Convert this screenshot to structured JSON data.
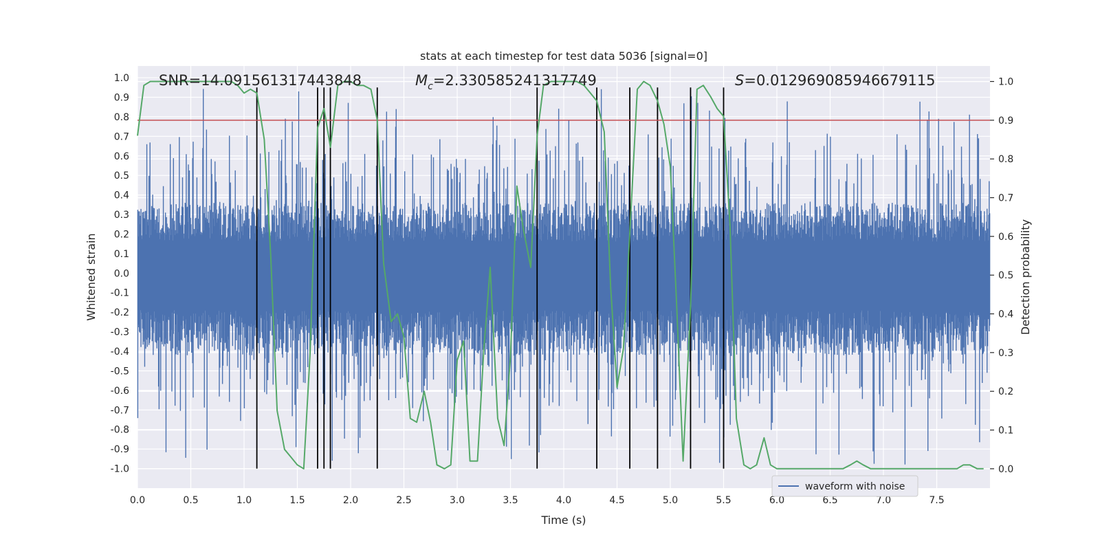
{
  "chart_data": {
    "type": "line",
    "title": "stats at each timestep for test data 5036 [signal=0]",
    "xlabel": "Time (s)",
    "ylabel_left": "Whitened strain",
    "ylabel_right": "Detection probability",
    "xlim": [
      0.0,
      8.0
    ],
    "ylim_left": [
      -1.1,
      1.06
    ],
    "ylim_right": [
      -0.05,
      1.04
    ],
    "x_ticks": [
      "0.0",
      "0.5",
      "1.0",
      "1.5",
      "2.0",
      "2.5",
      "3.0",
      "3.5",
      "4.0",
      "4.5",
      "5.0",
      "5.5",
      "6.0",
      "6.5",
      "7.0",
      "7.5"
    ],
    "y_ticks_left": [
      "1.0",
      "0.9",
      "0.8",
      "0.7",
      "0.6",
      "0.5",
      "0.4",
      "0.3",
      "0.2",
      "0.1",
      "0.0",
      "-0.1",
      "-0.2",
      "-0.3",
      "-0.4",
      "-0.5",
      "-0.6",
      "-0.7",
      "-0.8",
      "-0.9",
      "-1.0"
    ],
    "y_ticks_right": [
      "1.0",
      "0.9",
      "0.8",
      "0.7",
      "0.6",
      "0.5",
      "0.4",
      "0.3",
      "0.2",
      "0.1",
      "0.0"
    ],
    "annotations": {
      "snr": "SNR=14.091561317443848",
      "mc_symbol": "M",
      "mc_sub": "c",
      "mc_value": "=2.330585241317749",
      "s_symbol": "S",
      "s_value": "=0.012969085946679115"
    },
    "legend": {
      "position": "lower-center-right",
      "entries": [
        "waveform with noise"
      ]
    },
    "threshold": {
      "value": 0.9,
      "axis": "right",
      "color": "#c44e52"
    },
    "vertical_lines": [
      1.12,
      1.69,
      1.75,
      1.81,
      2.25,
      3.75,
      4.31,
      4.62,
      4.88,
      5.19,
      5.5
    ],
    "vertical_lines_range_left": [
      -1.0,
      0.95
    ],
    "waveform_noise": {
      "name": "waveform with noise",
      "color": "#4c72b0",
      "sample_count": 1600,
      "typical_envelope": [
        -0.42,
        0.36
      ],
      "peak_max": 0.95,
      "peak_min": -0.98
    },
    "detection_probability": {
      "color": "#55a868",
      "x": [
        0.0,
        0.06,
        0.12,
        0.19,
        0.25,
        0.31,
        0.38,
        0.44,
        0.5,
        0.56,
        0.62,
        0.69,
        0.75,
        0.81,
        0.88,
        0.94,
        1.0,
        1.06,
        1.12,
        1.19,
        1.25,
        1.31,
        1.38,
        1.44,
        1.5,
        1.56,
        1.62,
        1.69,
        1.75,
        1.81,
        1.88,
        1.94,
        2.0,
        2.06,
        2.12,
        2.19,
        2.25,
        2.31,
        2.38,
        2.44,
        2.5,
        2.56,
        2.62,
        2.69,
        2.75,
        2.81,
        2.88,
        2.94,
        3.0,
        3.06,
        3.12,
        3.19,
        3.25,
        3.31,
        3.38,
        3.44,
        3.5,
        3.56,
        3.62,
        3.69,
        3.75,
        3.81,
        3.88,
        3.94,
        4.0,
        4.06,
        4.12,
        4.19,
        4.25,
        4.31,
        4.38,
        4.44,
        4.5,
        4.56,
        4.62,
        4.69,
        4.75,
        4.81,
        4.88,
        4.94,
        5.0,
        5.06,
        5.12,
        5.19,
        5.25,
        5.31,
        5.38,
        5.44,
        5.5,
        5.56,
        5.62,
        5.69,
        5.75,
        5.81,
        5.88,
        5.94,
        6.0,
        6.12,
        6.25,
        6.38,
        6.5,
        6.62,
        6.69,
        6.75,
        6.81,
        6.88,
        7.0,
        7.12,
        7.25,
        7.38,
        7.5,
        7.62,
        7.69,
        7.75,
        7.81,
        7.88,
        7.94
      ],
      "values": [
        0.86,
        0.99,
        1.0,
        1.0,
        1.0,
        1.0,
        1.0,
        1.0,
        1.0,
        1.0,
        1.0,
        1.0,
        1.0,
        1.0,
        1.0,
        0.99,
        0.97,
        0.98,
        0.97,
        0.85,
        0.55,
        0.15,
        0.05,
        0.03,
        0.01,
        0.0,
        0.3,
        0.88,
        0.93,
        0.83,
        0.99,
        1.0,
        1.0,
        0.99,
        0.99,
        0.98,
        0.9,
        0.53,
        0.38,
        0.4,
        0.34,
        0.13,
        0.12,
        0.2,
        0.12,
        0.01,
        0.0,
        0.01,
        0.28,
        0.33,
        0.02,
        0.02,
        0.31,
        0.52,
        0.13,
        0.06,
        0.29,
        0.73,
        0.62,
        0.52,
        0.86,
        0.99,
        1.0,
        1.0,
        1.0,
        1.0,
        1.0,
        0.99,
        0.97,
        0.95,
        0.87,
        0.47,
        0.21,
        0.31,
        0.61,
        0.98,
        1.0,
        0.99,
        0.95,
        0.89,
        0.78,
        0.42,
        0.02,
        0.42,
        0.98,
        0.99,
        0.96,
        0.93,
        0.91,
        0.63,
        0.13,
        0.01,
        0.0,
        0.01,
        0.08,
        0.01,
        0.0,
        0.0,
        0.0,
        0.0,
        0.0,
        0.0,
        0.01,
        0.02,
        0.01,
        0.0,
        0.0,
        0.0,
        0.0,
        0.0,
        0.0,
        0.0,
        0.0,
        0.01,
        0.01,
        0.0,
        0.0
      ]
    }
  }
}
